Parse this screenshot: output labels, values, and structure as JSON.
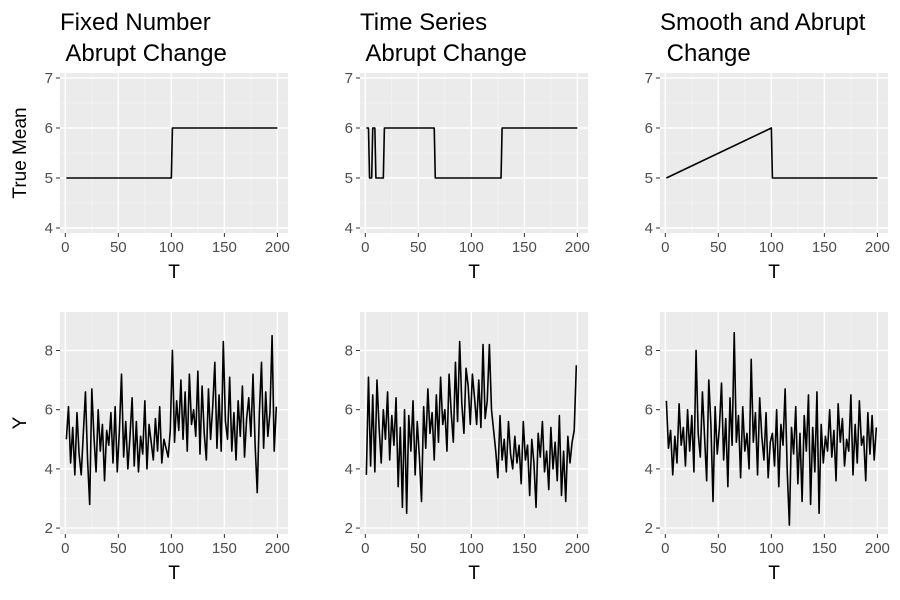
{
  "chart_data": [
    {
      "type": "line",
      "title": [
        "Fixed Number",
        " Abrupt Change"
      ],
      "xlabel": "T",
      "ylabel": "True Mean",
      "xlim": [
        -5,
        210
      ],
      "ylim": [
        3.9,
        7.1
      ],
      "xticks": [
        0,
        50,
        100,
        150,
        200
      ],
      "yticks": [
        4,
        5,
        6,
        7
      ],
      "series": [
        {
          "x": [
            1,
            100,
            101,
            200
          ],
          "y": [
            5,
            5,
            6,
            6
          ]
        }
      ]
    },
    {
      "type": "line",
      "title": [
        "Time Series",
        " Abrupt Change"
      ],
      "xlabel": "T",
      "ylabel": "",
      "xlim": [
        -5,
        210
      ],
      "ylim": [
        3.9,
        7.1
      ],
      "xticks": [
        0,
        50,
        100,
        150,
        200
      ],
      "yticks": [
        4,
        5,
        6,
        7
      ],
      "series": [
        {
          "x": [
            1,
            3,
            4,
            6,
            7,
            9,
            10,
            17,
            18,
            65,
            66,
            128,
            129,
            200
          ],
          "y": [
            6,
            6,
            5,
            5,
            6,
            6,
            5,
            5,
            6,
            6,
            5,
            5,
            6,
            6
          ]
        }
      ]
    },
    {
      "type": "line",
      "title": [
        "Smooth and Abrupt",
        " Change"
      ],
      "xlabel": "T",
      "ylabel": "",
      "xlim": [
        -5,
        210
      ],
      "ylim": [
        3.9,
        7.1
      ],
      "xticks": [
        0,
        50,
        100,
        150,
        200
      ],
      "yticks": [
        4,
        5,
        6,
        7
      ],
      "series": [
        {
          "x": [
            1,
            100,
            101,
            200
          ],
          "y": [
            5,
            6,
            5,
            5
          ]
        }
      ]
    },
    {
      "type": "line",
      "title": [],
      "xlabel": "T",
      "ylabel": "Y",
      "xlim": [
        -5,
        210
      ],
      "ylim": [
        1.8,
        9.3
      ],
      "xticks": [
        0,
        50,
        100,
        150,
        200
      ],
      "yticks": [
        2,
        4,
        6,
        8
      ],
      "series": [
        {
          "x": [
            1,
            3,
            5,
            7,
            9,
            11,
            13,
            15,
            17,
            19,
            21,
            23,
            25,
            27,
            29,
            31,
            33,
            35,
            37,
            39,
            41,
            43,
            45,
            47,
            49,
            51,
            53,
            55,
            57,
            59,
            61,
            63,
            65,
            67,
            69,
            71,
            73,
            75,
            77,
            79,
            81,
            83,
            85,
            87,
            89,
            91,
            93,
            95,
            97,
            99,
            101,
            103,
            105,
            107,
            109,
            111,
            113,
            115,
            117,
            119,
            121,
            123,
            125,
            127,
            129,
            131,
            133,
            135,
            137,
            139,
            141,
            143,
            145,
            147,
            149,
            151,
            153,
            155,
            157,
            159,
            161,
            163,
            165,
            167,
            169,
            171,
            173,
            175,
            177,
            179,
            181,
            183,
            185,
            187,
            189,
            191,
            193,
            195,
            197,
            199
          ],
          "y": [
            5.0,
            6.1,
            4.2,
            5.4,
            3.8,
            5.9,
            4.5,
            3.8,
            5.2,
            6.6,
            4.3,
            2.8,
            6.7,
            5.1,
            3.9,
            6.0,
            4.6,
            5.5,
            3.6,
            5.3,
            4.8,
            5.9,
            4.2,
            6.1,
            3.9,
            5.3,
            7.2,
            4.4,
            5.6,
            4.0,
            5.1,
            6.4,
            4.1,
            5.6,
            3.9,
            5.1,
            4.5,
            6.3,
            4.0,
            5.5,
            4.9,
            4.3,
            5.7,
            4.6,
            6.1,
            4.2,
            5.0,
            4.7,
            4.4,
            5.3,
            8.0,
            4.9,
            6.3,
            5.3,
            7.0,
            5.0,
            6.6,
            4.6,
            7.2,
            5.5,
            6.0,
            5.1,
            7.3,
            4.5,
            6.8,
            5.2,
            4.3,
            6.7,
            5.0,
            6.1,
            7.6,
            4.7,
            6.5,
            4.6,
            8.3,
            5.6,
            5.0,
            7.1,
            4.6,
            5.9,
            4.3,
            6.3,
            5.1,
            6.8,
            4.4,
            5.7,
            6.4,
            5.1,
            7.2,
            4.8,
            3.2,
            5.9,
            7.6,
            4.7,
            6.6,
            5.1,
            5.9,
            8.5,
            4.6,
            6.1
          ]
        }
      ]
    },
    {
      "type": "line",
      "title": [],
      "xlabel": "T",
      "ylabel": "",
      "xlim": [
        -5,
        210
      ],
      "ylim": [
        1.8,
        9.3
      ],
      "xticks": [
        0,
        50,
        100,
        150,
        200
      ],
      "yticks": [
        2,
        4,
        6,
        8
      ],
      "series": [
        {
          "x": [
            1,
            3,
            5,
            7,
            9,
            11,
            13,
            15,
            17,
            19,
            21,
            23,
            25,
            27,
            29,
            31,
            33,
            35,
            37,
            39,
            41,
            43,
            45,
            47,
            49,
            51,
            53,
            55,
            57,
            59,
            61,
            63,
            65,
            67,
            69,
            71,
            73,
            75,
            77,
            79,
            81,
            83,
            85,
            87,
            89,
            91,
            93,
            95,
            97,
            99,
            101,
            103,
            105,
            107,
            109,
            111,
            113,
            115,
            117,
            119,
            121,
            123,
            125,
            127,
            129,
            131,
            133,
            135,
            137,
            139,
            141,
            143,
            145,
            147,
            149,
            151,
            153,
            155,
            157,
            159,
            161,
            163,
            165,
            167,
            169,
            171,
            173,
            175,
            177,
            179,
            181,
            183,
            185,
            187,
            189,
            191,
            193,
            195,
            197,
            199
          ],
          "y": [
            3.8,
            7.1,
            4.1,
            6.5,
            3.9,
            7.0,
            5.4,
            4.2,
            6.0,
            5.0,
            6.6,
            4.3,
            5.8,
            4.8,
            6.4,
            3.4,
            5.4,
            2.7,
            6.0,
            2.5,
            5.8,
            4.6,
            6.3,
            3.8,
            5.6,
            4.4,
            2.9,
            6.1,
            4.7,
            6.7,
            5.2,
            5.9,
            4.3,
            6.5,
            4.9,
            7.1,
            5.5,
            6.0,
            4.6,
            7.2,
            5.9,
            4.9,
            7.6,
            5.6,
            8.3,
            6.2,
            5.2,
            7.4,
            6.8,
            5.5,
            7.2,
            6.4,
            5.5,
            7.0,
            5.4,
            8.2,
            5.7,
            6.3,
            8.2,
            6.0,
            5.3,
            4.6,
            3.7,
            5.8,
            4.3,
            5.0,
            3.9,
            5.6,
            4.5,
            4.0,
            5.1,
            4.2,
            4.8,
            3.5,
            5.6,
            4.3,
            4.8,
            3.1,
            5.0,
            4.2,
            2.7,
            5.2,
            4.4,
            5.6,
            3.9,
            4.6,
            3.3,
            5.4,
            4.0,
            4.9,
            3.6,
            5.8,
            3.1,
            4.6,
            2.9,
            5.1,
            4.2,
            4.9,
            5.3,
            7.5
          ]
        }
      ]
    },
    {
      "type": "line",
      "title": [],
      "xlabel": "T",
      "ylabel": "",
      "xlim": [
        -5,
        210
      ],
      "ylim": [
        1.8,
        9.3
      ],
      "xticks": [
        0,
        50,
        100,
        150,
        200
      ],
      "yticks": [
        2,
        4,
        6,
        8
      ],
      "series": [
        {
          "x": [
            1,
            3,
            5,
            7,
            9,
            11,
            13,
            15,
            17,
            19,
            21,
            23,
            25,
            27,
            29,
            31,
            33,
            35,
            37,
            39,
            41,
            43,
            45,
            47,
            49,
            51,
            53,
            55,
            57,
            59,
            61,
            63,
            65,
            67,
            69,
            71,
            73,
            75,
            77,
            79,
            81,
            83,
            85,
            87,
            89,
            91,
            93,
            95,
            97,
            99,
            101,
            103,
            105,
            107,
            109,
            111,
            113,
            115,
            117,
            119,
            121,
            123,
            125,
            127,
            129,
            131,
            133,
            135,
            137,
            139,
            141,
            143,
            145,
            147,
            149,
            151,
            153,
            155,
            157,
            159,
            161,
            163,
            165,
            167,
            169,
            171,
            173,
            175,
            177,
            179,
            181,
            183,
            185,
            187,
            189,
            191,
            193,
            195,
            197,
            199
          ],
          "y": [
            6.3,
            4.7,
            5.3,
            3.8,
            5.1,
            4.2,
            6.2,
            4.8,
            5.4,
            4.1,
            6.0,
            4.6,
            5.8,
            3.9,
            8.0,
            5.2,
            4.4,
            6.6,
            5.1,
            3.6,
            7.0,
            5.5,
            2.9,
            6.1,
            4.5,
            5.4,
            6.9,
            4.3,
            5.7,
            3.4,
            6.4,
            4.8,
            8.6,
            4.9,
            5.8,
            3.7,
            6.1,
            4.6,
            5.2,
            4.0,
            7.7,
            4.9,
            5.9,
            3.8,
            6.4,
            5.1,
            4.3,
            5.9,
            3.7,
            4.9,
            5.2,
            4.1,
            6.0,
            3.4,
            5.5,
            4.8,
            6.7,
            3.9,
            2.1,
            5.4,
            4.5,
            6.1,
            3.5,
            5.2,
            2.9,
            5.8,
            4.6,
            6.5,
            2.8,
            5.4,
            3.9,
            6.6,
            2.5,
            5.5,
            4.2,
            5.1,
            4.6,
            6.0,
            4.4,
            5.3,
            3.6,
            6.2,
            4.9,
            5.7,
            4.1,
            5.0,
            4.6,
            6.5,
            3.8,
            5.5,
            4.2,
            6.3,
            4.8,
            5.1,
            3.6,
            5.9,
            4.5,
            5.8,
            4.3,
            5.4
          ]
        }
      ]
    }
  ]
}
